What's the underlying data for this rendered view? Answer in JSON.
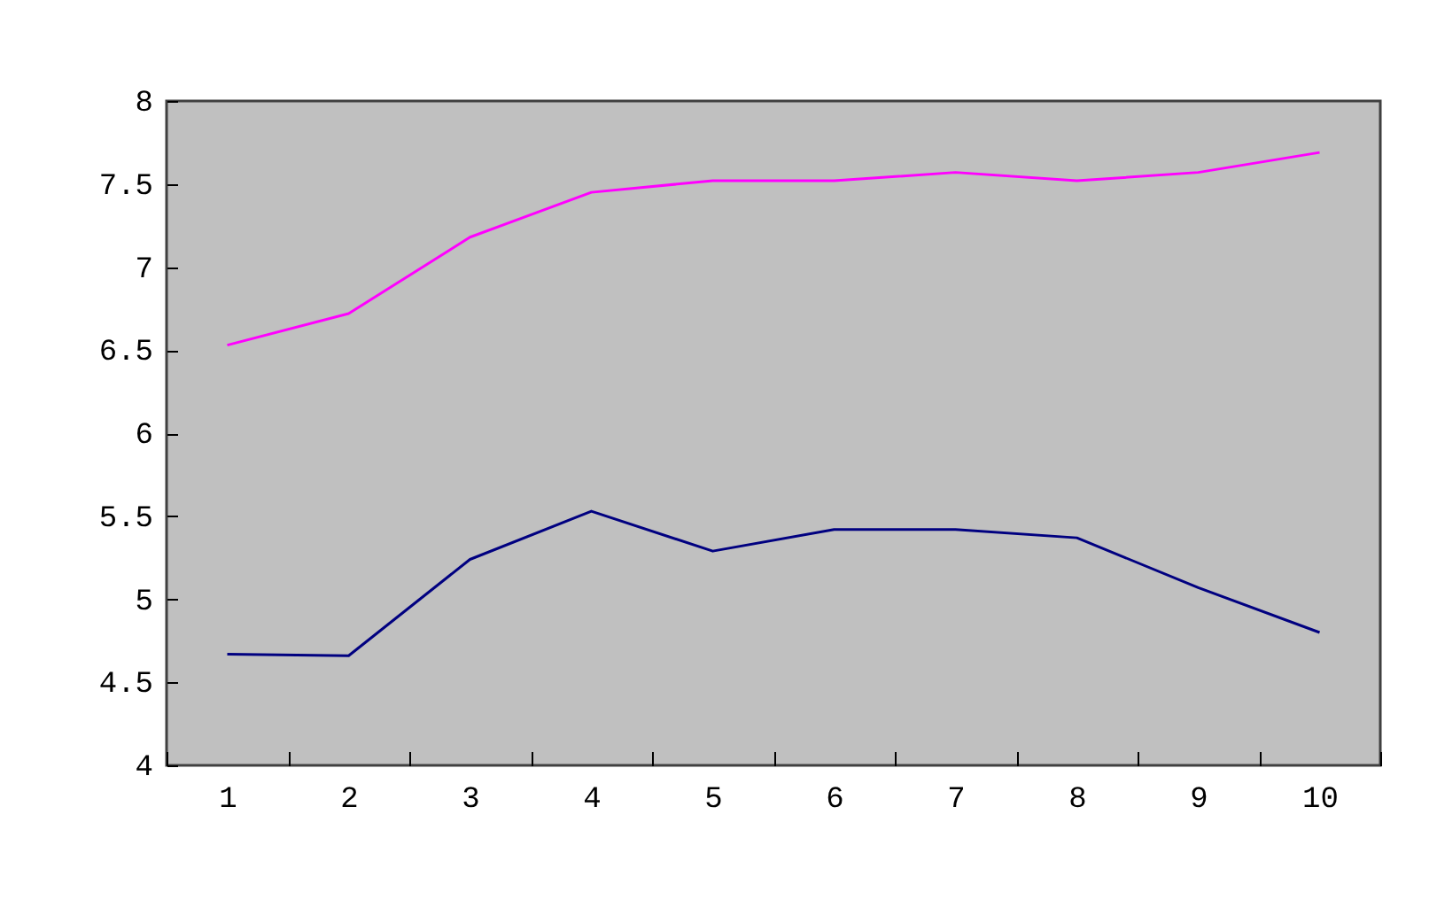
{
  "chart_data": {
    "type": "line",
    "categories": [
      "1",
      "2",
      "3",
      "4",
      "5",
      "6",
      "7",
      "8",
      "9",
      "10"
    ],
    "series": [
      {
        "color": "#ff00ff",
        "values": [
          6.53,
          6.72,
          7.18,
          7.45,
          7.52,
          7.52,
          7.57,
          7.52,
          7.57,
          7.69
        ]
      },
      {
        "color": "#000080",
        "values": [
          4.67,
          4.66,
          5.24,
          5.53,
          5.29,
          5.42,
          5.42,
          5.37,
          5.07,
          4.8
        ]
      }
    ],
    "ylim": [
      4,
      8
    ],
    "yticks": [
      4,
      4.5,
      5,
      5.5,
      6,
      6.5,
      7,
      7.5,
      8
    ],
    "grid": false
  }
}
